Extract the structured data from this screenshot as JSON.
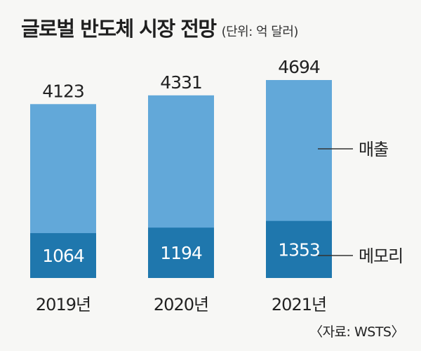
{
  "header": {
    "title": "글로벌 반도체 시장 전망",
    "unit": "(단위: 억 달러)"
  },
  "source": "〈자료: WSTS〉",
  "colors": {
    "total": "#62a8d9",
    "memory": "#1f77ad",
    "label_on_bar": "#ffffff",
    "text": "#222222"
  },
  "chart_data": {
    "type": "bar",
    "stacked": false,
    "categories": [
      "2019년",
      "2020년",
      "2021년"
    ],
    "series": [
      {
        "name": "매출",
        "values": [
          4123,
          4331,
          4694
        ]
      },
      {
        "name": "메모리",
        "values": [
          1064,
          1194,
          1353
        ]
      }
    ],
    "title": "글로벌 반도체 시장 전망",
    "ylabel": "",
    "xlabel": "",
    "ylim": [
      0,
      4694
    ],
    "grid": false,
    "legend": "right, labels with leader lines"
  }
}
